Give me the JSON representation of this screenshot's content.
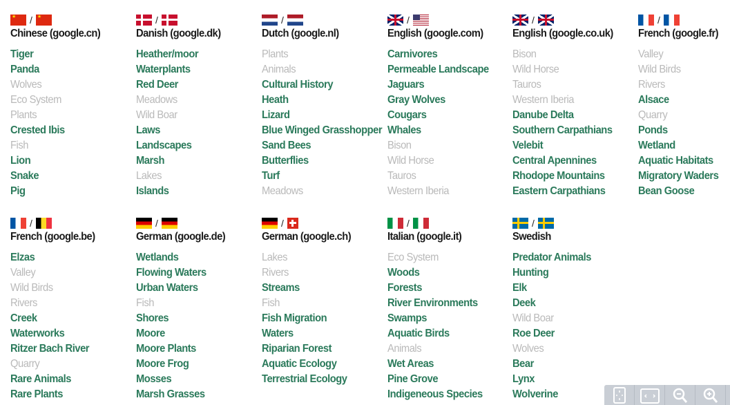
{
  "colors": {
    "active": "#2b7a5b",
    "inactive": "#b9b9b9",
    "title": "#1a1a1a"
  },
  "flag_separator": "/",
  "columns": [
    {
      "flags": [
        "cn",
        "cn"
      ],
      "title": "Chinese (google.cn)",
      "items": [
        {
          "label": "Tiger",
          "active": true
        },
        {
          "label": "Panda",
          "active": true
        },
        {
          "label": "Wolves",
          "active": false
        },
        {
          "label": "Eco System",
          "active": false
        },
        {
          "label": "Plants",
          "active": false
        },
        {
          "label": "Crested Ibis",
          "active": true
        },
        {
          "label": "Fish",
          "active": false
        },
        {
          "label": "Lion",
          "active": true
        },
        {
          "label": "Snake",
          "active": true
        },
        {
          "label": "Pig",
          "active": true
        }
      ]
    },
    {
      "flags": [
        "dk",
        "dk"
      ],
      "title": "Danish (google.dk)",
      "items": [
        {
          "label": "Heather/moor",
          "active": true
        },
        {
          "label": "Waterplants",
          "active": true
        },
        {
          "label": "Red Deer",
          "active": true
        },
        {
          "label": "Meadows",
          "active": false
        },
        {
          "label": "Wild Boar",
          "active": false
        },
        {
          "label": "Laws",
          "active": true
        },
        {
          "label": "Landscapes",
          "active": true
        },
        {
          "label": "Marsh",
          "active": true
        },
        {
          "label": "Lakes",
          "active": false
        },
        {
          "label": "Islands",
          "active": true
        }
      ]
    },
    {
      "flags": [
        "nl",
        "nl"
      ],
      "title": "Dutch (google.nl)",
      "items": [
        {
          "label": "Plants",
          "active": false
        },
        {
          "label": "Animals",
          "active": false
        },
        {
          "label": "Cultural History",
          "active": true
        },
        {
          "label": "Heath",
          "active": true
        },
        {
          "label": "Lizard",
          "active": true
        },
        {
          "label": "Blue Winged Grasshopper",
          "active": true
        },
        {
          "label": "Sand Bees",
          "active": true
        },
        {
          "label": "Butterflies",
          "active": true
        },
        {
          "label": "Turf",
          "active": true
        },
        {
          "label": "Meadows",
          "active": false
        }
      ]
    },
    {
      "flags": [
        "gb",
        "us"
      ],
      "title": "English (google.com)",
      "items": [
        {
          "label": "Carnivores",
          "active": true
        },
        {
          "label": "Permeable Landscape",
          "active": true
        },
        {
          "label": "Jaguars",
          "active": true
        },
        {
          "label": "Gray Wolves",
          "active": true
        },
        {
          "label": "Cougars",
          "active": true
        },
        {
          "label": "Whales",
          "active": true
        },
        {
          "label": "Bison",
          "active": false
        },
        {
          "label": "Wild Horse",
          "active": false
        },
        {
          "label": "Tauros",
          "active": false
        },
        {
          "label": "Western Iberia",
          "active": false
        }
      ]
    },
    {
      "flags": [
        "gb",
        "gb"
      ],
      "title": "English (google.co.uk)",
      "items": [
        {
          "label": "Bison",
          "active": false
        },
        {
          "label": "Wild Horse",
          "active": false
        },
        {
          "label": "Tauros",
          "active": false
        },
        {
          "label": "Western Iberia",
          "active": false
        },
        {
          "label": "Danube Delta",
          "active": true
        },
        {
          "label": "Southern Carpathians",
          "active": true
        },
        {
          "label": "Velebit",
          "active": true
        },
        {
          "label": "Central Apennines",
          "active": true
        },
        {
          "label": "Rhodope Mountains",
          "active": true
        },
        {
          "label": "Eastern Carpathians",
          "active": true
        }
      ]
    },
    {
      "flags": [
        "fr",
        "fr"
      ],
      "title": "French (google.fr)",
      "items": [
        {
          "label": "Valley",
          "active": false
        },
        {
          "label": "Wild Birds",
          "active": false
        },
        {
          "label": "Rivers",
          "active": false
        },
        {
          "label": "Alsace",
          "active": true
        },
        {
          "label": "Quarry",
          "active": false
        },
        {
          "label": "Ponds",
          "active": true
        },
        {
          "label": "Wetland",
          "active": true
        },
        {
          "label": "Aquatic Habitats",
          "active": true
        },
        {
          "label": "Migratory Waders",
          "active": true
        },
        {
          "label": "Bean Goose",
          "active": true
        }
      ]
    },
    {
      "flags": [
        "fr",
        "be"
      ],
      "title": "French (google.be)",
      "items": [
        {
          "label": "Elzas",
          "active": true
        },
        {
          "label": "Valley",
          "active": false
        },
        {
          "label": "Wild Birds",
          "active": false
        },
        {
          "label": "Rivers",
          "active": false
        },
        {
          "label": "Creek",
          "active": true
        },
        {
          "label": "Waterworks",
          "active": true
        },
        {
          "label": "Ritzer Bach River",
          "active": true
        },
        {
          "label": "Quarry",
          "active": false
        },
        {
          "label": "Rare Animals",
          "active": true
        },
        {
          "label": "Rare Plants",
          "active": true
        }
      ]
    },
    {
      "flags": [
        "de",
        "de"
      ],
      "title": "German (google.de)",
      "items": [
        {
          "label": "Wetlands",
          "active": true
        },
        {
          "label": "Flowing Waters",
          "active": true
        },
        {
          "label": "Urban Waters",
          "active": true
        },
        {
          "label": "Fish",
          "active": false
        },
        {
          "label": "Shores",
          "active": true
        },
        {
          "label": "Moore",
          "active": true
        },
        {
          "label": "Moore Plants",
          "active": true
        },
        {
          "label": "Moore Frog",
          "active": true
        },
        {
          "label": "Mosses",
          "active": true
        },
        {
          "label": "Marsh Grasses",
          "active": true
        }
      ]
    },
    {
      "flags": [
        "de",
        "ch"
      ],
      "title": "German (google.ch)",
      "items": [
        {
          "label": "Lakes",
          "active": false
        },
        {
          "label": "Rivers",
          "active": false
        },
        {
          "label": "Streams",
          "active": true
        },
        {
          "label": "Fish",
          "active": false
        },
        {
          "label": "Fish Migration",
          "active": true
        },
        {
          "label": "Waters",
          "active": true
        },
        {
          "label": "Riparian Forest",
          "active": true
        },
        {
          "label": "Aquatic Ecology",
          "active": true
        },
        {
          "label": "Terrestrial Ecology",
          "active": true
        }
      ]
    },
    {
      "flags": [
        "it",
        "it"
      ],
      "title": "Italian (google.it)",
      "items": [
        {
          "label": "Eco System",
          "active": false
        },
        {
          "label": "Woods",
          "active": true
        },
        {
          "label": "Forests",
          "active": true
        },
        {
          "label": "River Environments",
          "active": true
        },
        {
          "label": "Swamps",
          "active": true
        },
        {
          "label": "Aquatic Birds",
          "active": true
        },
        {
          "label": "Animals",
          "active": false
        },
        {
          "label": "Wet Areas",
          "active": true
        },
        {
          "label": "Pine Grove",
          "active": true
        },
        {
          "label": "Indigeneous Species",
          "active": true
        }
      ]
    },
    {
      "flags": [
        "se",
        "se"
      ],
      "title": "Swedish",
      "items": [
        {
          "label": "Predator Animals",
          "active": true
        },
        {
          "label": "Hunting",
          "active": true
        },
        {
          "label": "Elk",
          "active": true
        },
        {
          "label": "Deek",
          "active": true
        },
        {
          "label": "Wild Boar",
          "active": false
        },
        {
          "label": "Roe Deer",
          "active": true
        },
        {
          "label": "Wolves",
          "active": false
        },
        {
          "label": "Bear",
          "active": true
        },
        {
          "label": "Lynx",
          "active": true
        },
        {
          "label": "Wolverine",
          "active": true
        }
      ]
    }
  ],
  "toolbar": {
    "buttons": [
      "fit-screen-icon",
      "fit-width-icon",
      "zoom-out-icon",
      "zoom-in-icon"
    ]
  }
}
